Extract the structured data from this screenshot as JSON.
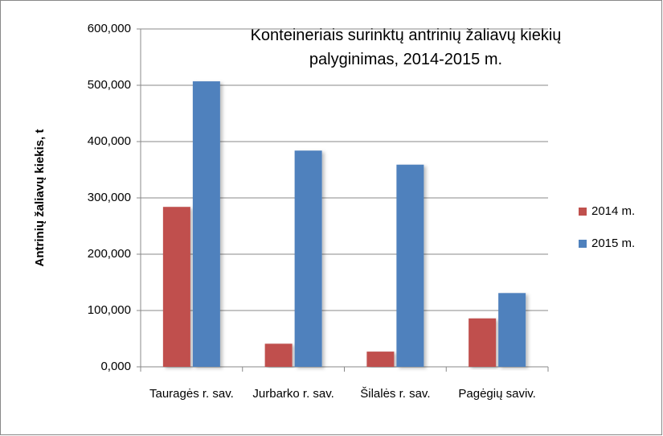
{
  "chart_data": {
    "type": "bar",
    "title": "Konteineriais surinktų antrinių žaliavų kiekių palyginimas, 2014-2015 m.",
    "y_label": "Antrinių žaliavų kiekis, t",
    "categories": [
      "Tauragės r. sav.",
      "Jurbarko r. sav.",
      "Šilalės r. sav.",
      "Pagėgių saviv."
    ],
    "series": [
      {
        "name": "2014 m.",
        "color": "#c0504d",
        "values": [
          284,
          41,
          27,
          86
        ]
      },
      {
        "name": "2015 m.",
        "color": "#4f81bd",
        "values": [
          507,
          384,
          359,
          131
        ]
      }
    ],
    "ylim": [
      0,
      600
    ],
    "yticks": [
      {
        "value": 0,
        "label": "0,000"
      },
      {
        "value": 100,
        "label": "100,000"
      },
      {
        "value": 200,
        "label": "200,000"
      },
      {
        "value": 300,
        "label": "300,000"
      },
      {
        "value": 400,
        "label": "400,000"
      },
      {
        "value": 500,
        "label": "500,000"
      },
      {
        "value": 600,
        "label": "600,000"
      }
    ],
    "grid": true,
    "legend": "right"
  }
}
